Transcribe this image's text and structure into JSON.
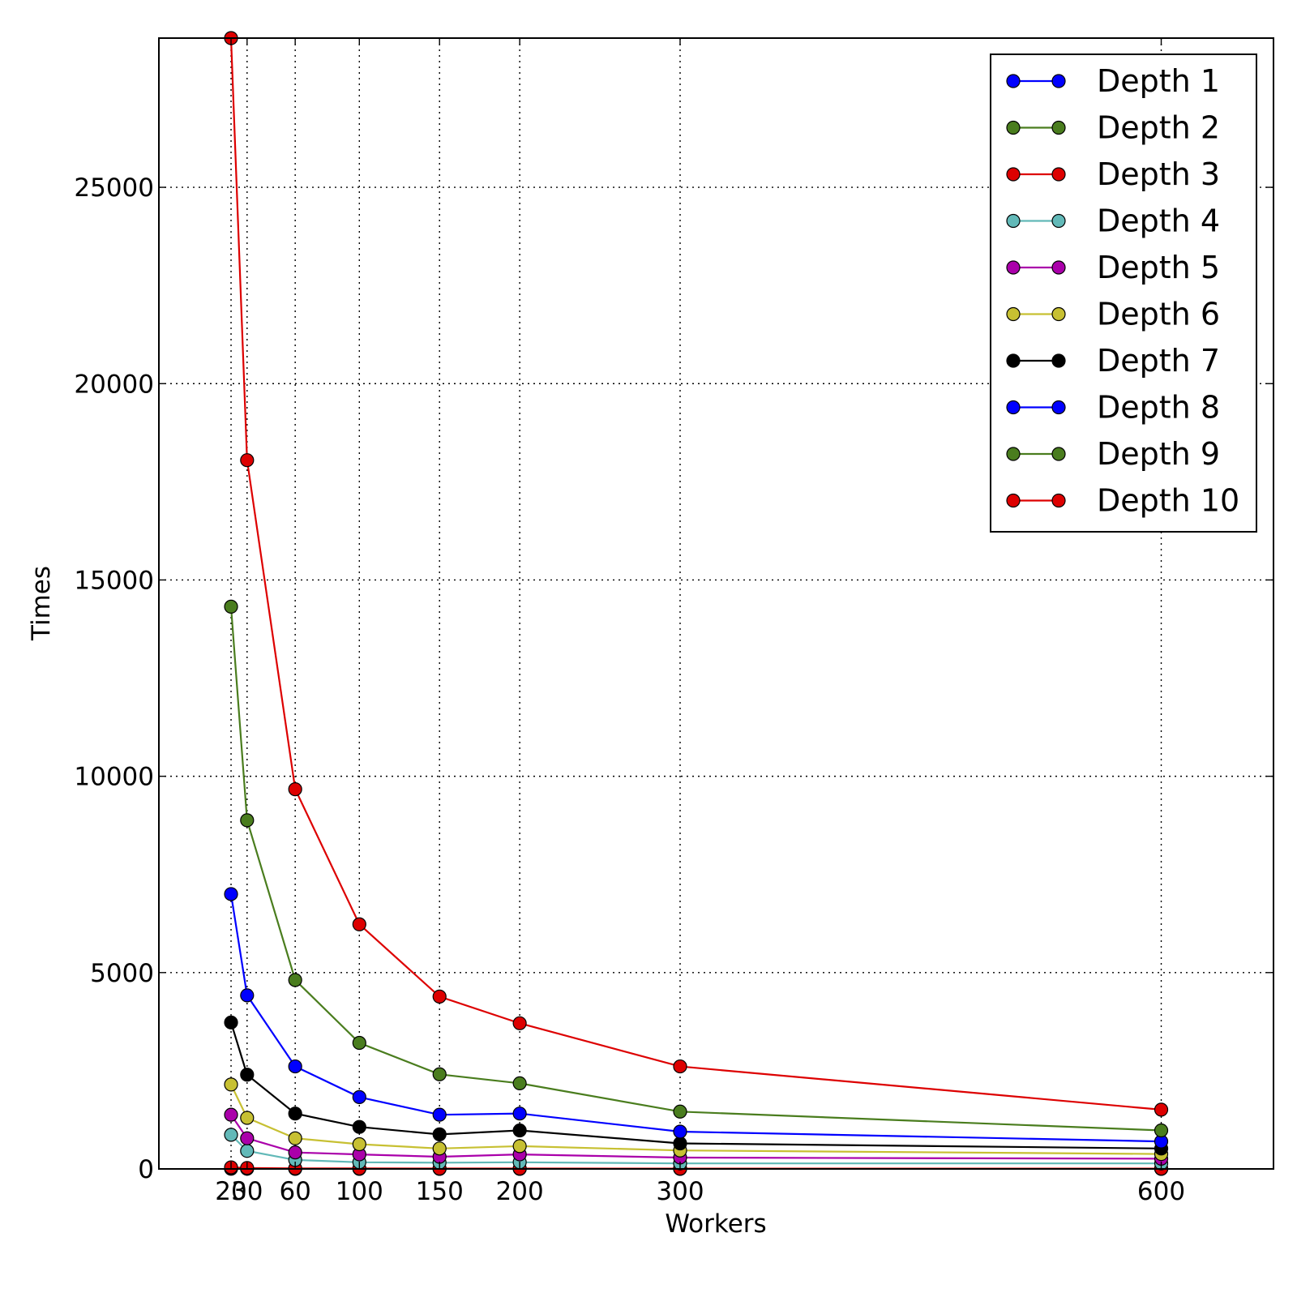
{
  "chart_data": {
    "type": "line",
    "xlabel": "Workers",
    "ylabel": "Times",
    "x": [
      20,
      30,
      60,
      100,
      150,
      200,
      300,
      600
    ],
    "xticks": [
      "20",
      "30",
      "60",
      "100",
      "150",
      "200",
      "300",
      "600"
    ],
    "yticks": [
      "0",
      "5000",
      "10000",
      "15000",
      "20000",
      "25000"
    ],
    "ytick_values": [
      0,
      5000,
      10000,
      15000,
      20000,
      25000
    ],
    "xlim": [
      -25,
      670
    ],
    "ylim": [
      0,
      28800
    ],
    "grid": true,
    "legend_position": "top-right",
    "series": [
      {
        "name": "Depth 1",
        "color": "#0000ff",
        "values": [
          5,
          3,
          2,
          2,
          2,
          2,
          2,
          2
        ]
      },
      {
        "name": "Depth 2",
        "color": "#4a7d1e",
        "values": [
          15,
          10,
          6,
          5,
          4,
          4,
          3,
          3
        ]
      },
      {
        "name": "Depth 3",
        "color": "#dd0000",
        "values": [
          40,
          25,
          15,
          12,
          10,
          10,
          8,
          8
        ]
      },
      {
        "name": "Depth 4",
        "color": "#62b9b8",
        "values": [
          870,
          460,
          230,
          170,
          160,
          170,
          140,
          140
        ]
      },
      {
        "name": "Depth 5",
        "color": "#aa00aa",
        "values": [
          1380,
          780,
          420,
          370,
          310,
          370,
          290,
          260
        ]
      },
      {
        "name": "Depth 6",
        "color": "#c7c032",
        "values": [
          2150,
          1300,
          780,
          630,
          520,
          580,
          470,
          380
        ]
      },
      {
        "name": "Depth 7",
        "color": "#000000",
        "values": [
          3730,
          2400,
          1410,
          1070,
          880,
          980,
          650,
          520
        ]
      },
      {
        "name": "Depth 8",
        "color": "#0000ff",
        "values": [
          7000,
          4420,
          2610,
          1830,
          1380,
          1410,
          950,
          700
        ]
      },
      {
        "name": "Depth 9",
        "color": "#4a7d1e",
        "values": [
          14320,
          8880,
          4810,
          3210,
          2410,
          2180,
          1460,
          980
        ]
      },
      {
        "name": "Depth 10",
        "color": "#dd0000",
        "values": [
          28800,
          18050,
          9670,
          6230,
          4390,
          3710,
          2610,
          1510
        ]
      }
    ]
  }
}
